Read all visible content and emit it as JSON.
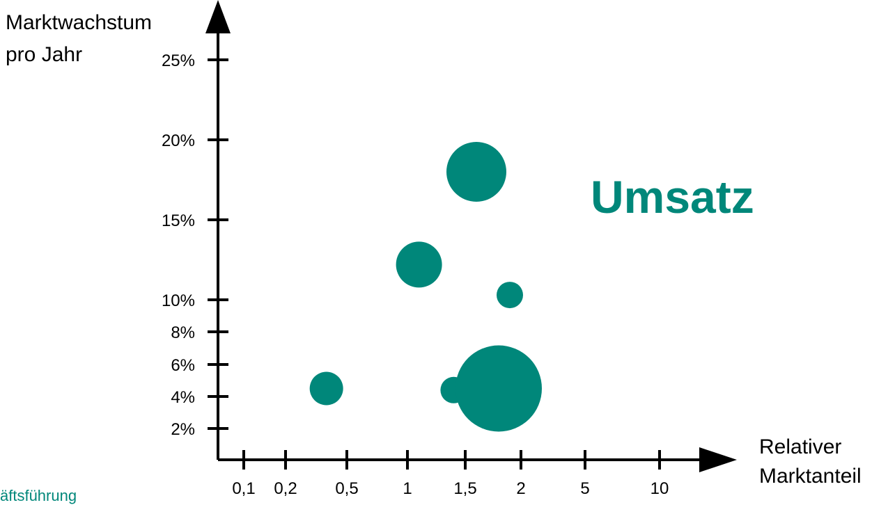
{
  "chart_data": {
    "type": "scatter",
    "title": "Umsatz",
    "ylabel": [
      "Marktwachstum",
      "pro Jahr"
    ],
    "xlabel": [
      "Relativer",
      "Marktanteil"
    ],
    "x_ticks": [
      "0,1",
      "0,2",
      "0,5",
      "1",
      "1,5",
      "2",
      "5",
      "10"
    ],
    "y_ticks": [
      "2%",
      "4%",
      "6%",
      "8%",
      "10%",
      "15%",
      "20%",
      "25%"
    ],
    "points": [
      {
        "x": 1.6,
        "y": 18,
        "size": "large"
      },
      {
        "x": 1.1,
        "y": 12.2,
        "size": "medium"
      },
      {
        "x": 1.9,
        "y": 10.3,
        "size": "small"
      },
      {
        "x": 0.4,
        "y": 4.5,
        "size": "medium"
      },
      {
        "x": 1.4,
        "y": 4.4,
        "size": "small"
      },
      {
        "x": 1.8,
        "y": 4.5,
        "size": "very large"
      }
    ],
    "colors": {
      "bubble": "#00877a",
      "title": "#00877a",
      "axis": "#000000"
    }
  },
  "footer": "äftsführung"
}
